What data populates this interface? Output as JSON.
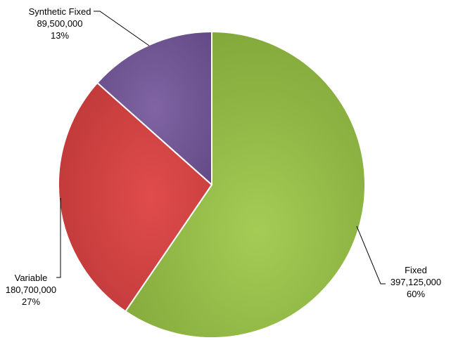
{
  "chart_data": {
    "type": "pie",
    "title": "",
    "slices": [
      {
        "label": "Fixed",
        "value_text": "397,125,000",
        "value": 397125000,
        "percent_text": "60%",
        "color": "#8db53f"
      },
      {
        "label": "Variable",
        "value_text": "180,700,000",
        "value": 180700000,
        "percent_text": "27%",
        "color": "#c94040"
      },
      {
        "label": "Synthetic Fixed",
        "value_text": "89,500,000",
        "value": 89500000,
        "percent_text": "13%",
        "color": "#735592"
      }
    ]
  }
}
